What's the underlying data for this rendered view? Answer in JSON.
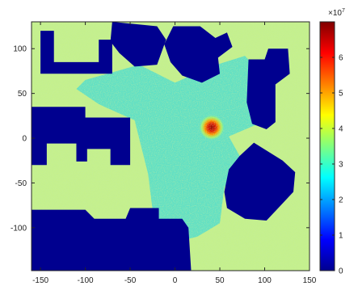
{
  "chart_data": {
    "type": "heatmap",
    "title": "",
    "xlabel": "",
    "ylabel": "",
    "xlim": [
      -160,
      150
    ],
    "ylim": [
      -148,
      130
    ],
    "x_ticks": [
      -150,
      -100,
      -50,
      0,
      50,
      100,
      150
    ],
    "y_ticks": [
      100,
      50,
      0,
      -50,
      -100
    ],
    "colorbar": {
      "colormap": "jet",
      "range": [
        0,
        7
      ],
      "ticks": [
        0,
        1,
        2,
        3,
        4,
        5,
        6
      ],
      "exponent_label": "×10",
      "exponent_power": "7"
    },
    "field": {
      "background_value": 4.1,
      "corridor_value": 3.2,
      "obstacle_value": 0,
      "hotspot": {
        "x": 41,
        "y": 12,
        "peak_value": 6.5
      }
    },
    "colors": {
      "obstacle": "#00008f",
      "background": "#c5f08d",
      "corridor": "#62e0c4",
      "hotspot": "#b20000"
    },
    "obstacles": [
      {
        "name": "top-left-building",
        "polygon": [
          [
            -150,
            120
          ],
          [
            -135,
            120
          ],
          [
            -135,
            85
          ],
          [
            -85,
            85
          ],
          [
            -85,
            110
          ],
          [
            -70,
            110
          ],
          [
            -70,
            72
          ],
          [
            -150,
            72
          ]
        ]
      },
      {
        "name": "top-center-block",
        "polygon": [
          [
            -70,
            130
          ],
          [
            -20,
            125
          ],
          [
            -10,
            110
          ],
          [
            -20,
            82
          ],
          [
            -45,
            80
          ],
          [
            -62,
            95
          ],
          [
            -72,
            108
          ]
        ]
      },
      {
        "name": "top-center-right-building",
        "polygon": [
          [
            -2,
            125
          ],
          [
            28,
            125
          ],
          [
            45,
            112
          ],
          [
            58,
            118
          ],
          [
            64,
            102
          ],
          [
            48,
            90
          ],
          [
            50,
            72
          ],
          [
            30,
            62
          ],
          [
            8,
            70
          ],
          [
            -5,
            85
          ],
          [
            -12,
            105
          ]
        ]
      },
      {
        "name": "right-upper-block",
        "polygon": [
          [
            82,
            88
          ],
          [
            100,
            88
          ],
          [
            104,
            100
          ],
          [
            126,
            100
          ],
          [
            128,
            72
          ],
          [
            112,
            60
          ],
          [
            112,
            18
          ],
          [
            102,
            10
          ],
          [
            86,
            16
          ],
          [
            80,
            40
          ]
        ]
      },
      {
        "name": "middle-left-building",
        "polygon": [
          [
            -160,
            35
          ],
          [
            -100,
            35
          ],
          [
            -100,
            23
          ],
          [
            -50,
            23
          ],
          [
            -50,
            -30
          ],
          [
            -72,
            -30
          ],
          [
            -72,
            -12
          ],
          [
            -98,
            -12
          ],
          [
            -98,
            -26
          ],
          [
            -110,
            -26
          ],
          [
            -110,
            -6
          ],
          [
            -143,
            -6
          ],
          [
            -143,
            -30
          ],
          [
            -160,
            -30
          ]
        ]
      },
      {
        "name": "right-lower-block",
        "polygon": [
          [
            88,
            -5
          ],
          [
            120,
            -25
          ],
          [
            134,
            -38
          ],
          [
            132,
            -60
          ],
          [
            118,
            -75
          ],
          [
            102,
            -92
          ],
          [
            78,
            -90
          ],
          [
            58,
            -78
          ],
          [
            55,
            -60
          ],
          [
            60,
            -35
          ],
          [
            72,
            -20
          ]
        ]
      },
      {
        "name": "bottom-left-building",
        "polygon": [
          [
            -160,
            -80
          ],
          [
            -100,
            -80
          ],
          [
            -90,
            -90
          ],
          [
            -55,
            -90
          ],
          [
            -50,
            -78
          ],
          [
            -18,
            -78
          ],
          [
            -18,
            -90
          ],
          [
            8,
            -90
          ],
          [
            15,
            -100
          ],
          [
            18,
            -148
          ],
          [
            -160,
            -148
          ]
        ]
      }
    ]
  }
}
